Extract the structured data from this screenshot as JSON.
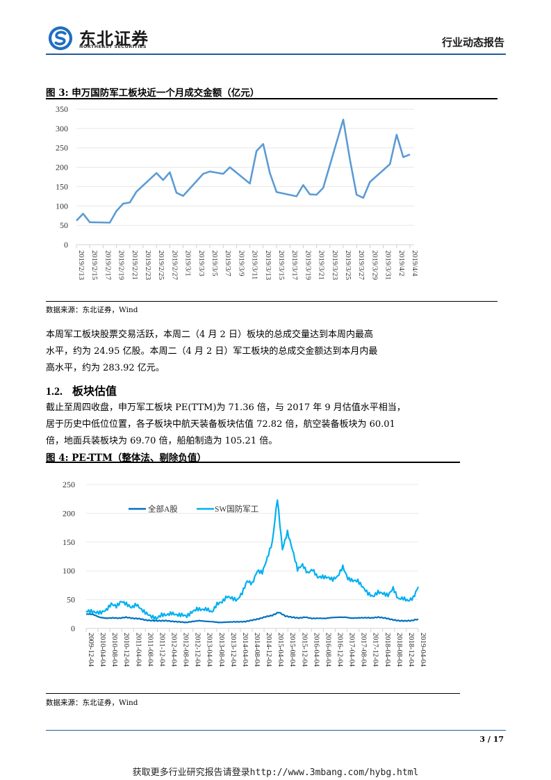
{
  "header": {
    "logo_cn": "东北证券",
    "logo_en": "NORTHEAST SECURITIES",
    "report_type": "行业动态报告",
    "brand_color": "#1f5a9e"
  },
  "figure3": {
    "title": "图  3:  申万国防军工板块近一个月成交金额（亿元）",
    "source": "数据来源：东北证券，Wind"
  },
  "paragraph1": {
    "line1": "本周军工板块股票交易活跃，本周二（4 月 2 日）板块的总成交量达到本周内最高",
    "line2": "水平，约为 24.95 亿股。本周二（4 月 2 日）军工板块的总成交金额达到本月内最",
    "line3": "高水平，约为 283.92 亿元。"
  },
  "section": {
    "number": "1.2.",
    "title": "板块估值"
  },
  "paragraph2": {
    "line1": "截止至周四收盘，申万军工板块 PE(TTM)为 71.36 倍，与 2017 年 9 月估值水平相当，",
    "line2": "居于历史中低位位置，各子板块中航天装备板块估值 72.82 倍，航空装备板块为 60.01",
    "line3": "倍，地面兵装板块为 69.70 倍，船舶制造为 105.21 倍。"
  },
  "figure4": {
    "title": "图  4:   PE-TTM（整体法、剔除负值）",
    "source": "数据来源：东北证券，Wind"
  },
  "footer": {
    "page": "3 / 17",
    "watermark": "获取更多行业研究报告请登录http://www.3mbang.com/hybg.html"
  },
  "chart_data": [
    {
      "type": "line",
      "title": "申万国防军工板块近一个月成交金额（亿元）",
      "xlabel": "",
      "ylabel": "亿元",
      "ylim": [
        0,
        350
      ],
      "yticks": [
        0,
        50,
        100,
        150,
        200,
        250,
        300,
        350
      ],
      "grid": true,
      "legend": null,
      "color": "#5b9bd5",
      "x_tick_labels": [
        "2019/2/13",
        "2019/2/15",
        "2019/2/17",
        "2019/2/19",
        "2019/2/21",
        "2019/2/23",
        "2019/2/25",
        "2019/2/27",
        "2019/3/1",
        "2019/3/3",
        "2019/3/5",
        "2019/3/7",
        "2019/3/9",
        "2019/3/11",
        "2019/3/13",
        "2019/3/15",
        "2019/3/17",
        "2019/3/19",
        "2019/3/21",
        "2019/3/23",
        "2019/3/25",
        "2019/3/27",
        "2019/3/29",
        "2019/3/31",
        "2019/4/2",
        "2019/4/4"
      ],
      "x": [
        "2019/2/13",
        "2019/2/14",
        "2019/2/15",
        "2019/2/18",
        "2019/2/19",
        "2019/2/20",
        "2019/2/21",
        "2019/2/22",
        "2019/2/25",
        "2019/2/26",
        "2019/2/27",
        "2019/2/28",
        "2019/3/1",
        "2019/3/4",
        "2019/3/5",
        "2019/3/6",
        "2019/3/7",
        "2019/3/8",
        "2019/3/11",
        "2019/3/12",
        "2019/3/13",
        "2019/3/14",
        "2019/3/15",
        "2019/3/18",
        "2019/3/19",
        "2019/3/20",
        "2019/3/21",
        "2019/3/22",
        "2019/3/25",
        "2019/3/26",
        "2019/3/27",
        "2019/3/28",
        "2019/3/29",
        "2019/4/1",
        "2019/4/2",
        "2019/4/3",
        "2019/4/4"
      ],
      "values": [
        62,
        80,
        58,
        57,
        87,
        106,
        109,
        137,
        185,
        167,
        187,
        134,
        126,
        183,
        189,
        186,
        183,
        200,
        158,
        242,
        260,
        185,
        136,
        125,
        154,
        130,
        129,
        147,
        323,
        220,
        129,
        121,
        162,
        208,
        284,
        226,
        233
      ]
    },
    {
      "type": "line",
      "title": "PE-TTM（整体法、剔除负值）",
      "xlabel": "",
      "ylabel": "",
      "ylim": [
        0,
        250
      ],
      "yticks": [
        0,
        50,
        100,
        150,
        200,
        250
      ],
      "grid": true,
      "legend_position": "top-left inside",
      "x_tick_labels": [
        "2009-12-04",
        "2010-04-04",
        "2010-08-04",
        "2010-12-04",
        "2011-04-04",
        "2011-08-04",
        "2011-12-04",
        "2012-04-04",
        "2012-08-04",
        "2012-12-04",
        "2013-04-04",
        "2013-08-04",
        "2013-12-04",
        "2014-04-04",
        "2014-08-04",
        "2014-12-04",
        "2015-04-04",
        "2015-08-04",
        "2015-12-04",
        "2016-04-04",
        "2016-08-04",
        "2016-12-04",
        "2017-04-04",
        "2017-08-04",
        "2017-12-04",
        "2018-04-04",
        "2018-08-04",
        "2018-12-04",
        "2019-04-04"
      ],
      "series": [
        {
          "name": "全部A股",
          "color": "#0070c0",
          "values": [
            25,
            24,
            19,
            18,
            19,
            18,
            19,
            17,
            17,
            15,
            14,
            13,
            13,
            12,
            12,
            11,
            12,
            13,
            12,
            12,
            11,
            11,
            11,
            11,
            12,
            15,
            17,
            20,
            22,
            28,
            22,
            20,
            18,
            19,
            17,
            18,
            18,
            19,
            19,
            19,
            18,
            19,
            19,
            18,
            19,
            18,
            16,
            14,
            13,
            13,
            16
          ]
        },
        {
          "name": "SW国防军工",
          "color": "#00b0f0",
          "values": [
            30,
            32,
            30,
            28,
            30,
            40,
            38,
            49,
            45,
            37,
            40,
            30,
            25,
            22,
            20,
            25,
            22,
            24,
            22,
            25,
            24,
            30,
            33,
            30,
            32,
            29,
            45,
            48,
            55,
            50,
            47,
            62,
            85,
            80,
            100,
            95,
            120,
            150,
            228,
            140,
            168,
            135,
            100,
            110,
            98,
            105,
            90,
            88,
            86,
            84,
            92,
            110,
            88,
            82,
            80,
            70,
            62,
            58,
            65,
            60,
            55,
            68,
            52,
            55,
            50,
            53,
            70
          ]
        }
      ]
    }
  ]
}
